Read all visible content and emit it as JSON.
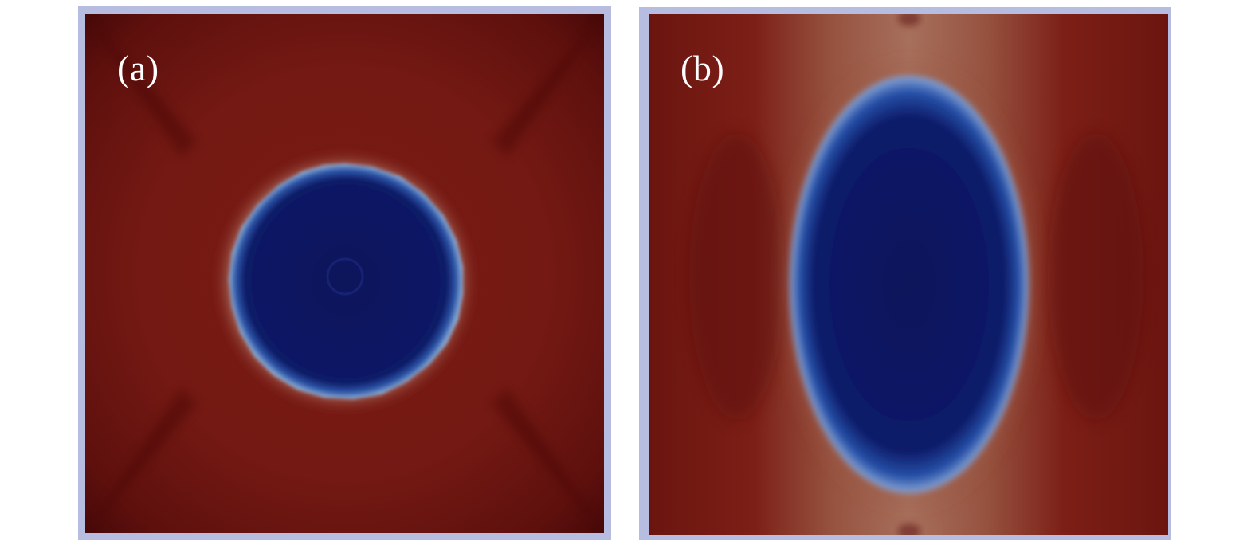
{
  "panels": [
    {
      "label": "(a)",
      "colors": {
        "background": "#6e1713",
        "dark_corner": "#4d0b0a",
        "inclusion": "#0e1762",
        "interface_glow": "#d9c8b4",
        "frame": "#b6bde0"
      }
    },
    {
      "label": "(b)",
      "colors": {
        "background": "#7c1f16",
        "halo": "#a56b57",
        "inclusion": "#0d1a66",
        "interface_glow": "#7fa0d5",
        "frame": "#b6bde0"
      }
    }
  ]
}
